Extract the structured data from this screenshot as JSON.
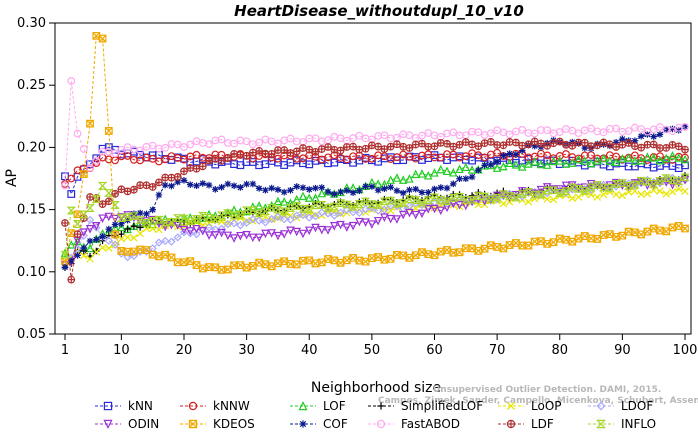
{
  "chart_data": {
    "type": "line",
    "title": "HeartDisease_withoutdupl_10_v10",
    "xlabel": "Neighborhood size",
    "ylabel": "AP",
    "xlim": [
      1,
      100
    ],
    "ylim": [
      0.05,
      0.3
    ],
    "xticks": [
      1,
      10,
      20,
      30,
      40,
      50,
      60,
      70,
      80,
      90,
      100
    ],
    "yticks": [
      "0.05",
      "0.10",
      "0.15",
      "0.20",
      "0.25",
      "0.30"
    ],
    "grid": false,
    "legend_position": "bottom",
    "watermark": [
      "Unsupervised Outlier Detection. DAMI, 2015.",
      "Campos, Zimek, Sander, Campello, Micenkova, Schubert, Assent, Houle"
    ],
    "series": [
      {
        "name": "kNN",
        "color": "#2b2bd6",
        "marker": "square",
        "x": [
          1,
          2,
          3,
          5,
          7,
          10,
          15,
          20,
          25,
          30,
          40,
          50,
          60,
          70,
          80,
          90,
          100
        ],
        "y": [
          0.175,
          0.163,
          0.178,
          0.185,
          0.2,
          0.196,
          0.193,
          0.19,
          0.188,
          0.187,
          0.188,
          0.19,
          0.192,
          0.19,
          0.188,
          0.186,
          0.185
        ]
      },
      {
        "name": "kNNW",
        "color": "#d61f1f",
        "marker": "circle",
        "x": [
          1,
          2,
          3,
          5,
          7,
          10,
          15,
          20,
          25,
          30,
          40,
          50,
          60,
          70,
          80,
          90,
          100
        ],
        "y": [
          0.172,
          0.176,
          0.18,
          0.185,
          0.19,
          0.192,
          0.19,
          0.192,
          0.193,
          0.193,
          0.192,
          0.192,
          0.193,
          0.194,
          0.193,
          0.192,
          0.191
        ]
      },
      {
        "name": "LOF",
        "color": "#22cc22",
        "marker": "triangle-up",
        "x": [
          1,
          2,
          3,
          5,
          7,
          10,
          15,
          20,
          25,
          30,
          40,
          50,
          60,
          70,
          80,
          90,
          100
        ],
        "y": [
          0.115,
          0.12,
          0.125,
          0.118,
          0.132,
          0.135,
          0.14,
          0.142,
          0.145,
          0.15,
          0.16,
          0.17,
          0.18,
          0.185,
          0.188,
          0.19,
          0.192
        ]
      },
      {
        "name": "SimplifiedLOF",
        "color": "#000000",
        "marker": "plus",
        "x": [
          1,
          2,
          3,
          5,
          7,
          10,
          15,
          20,
          25,
          30,
          40,
          50,
          60,
          70,
          80,
          90,
          100
        ],
        "y": [
          0.102,
          0.108,
          0.118,
          0.112,
          0.125,
          0.132,
          0.14,
          0.14,
          0.143,
          0.147,
          0.153,
          0.156,
          0.16,
          0.163,
          0.166,
          0.17,
          0.176
        ]
      },
      {
        "name": "LoOP",
        "color": "#e6e600",
        "marker": "x",
        "x": [
          1,
          2,
          3,
          5,
          7,
          10,
          15,
          20,
          25,
          30,
          40,
          50,
          60,
          70,
          80,
          90,
          100
        ],
        "y": [
          0.11,
          0.112,
          0.115,
          0.112,
          0.118,
          0.125,
          0.135,
          0.138,
          0.14,
          0.142,
          0.146,
          0.15,
          0.153,
          0.156,
          0.16,
          0.163,
          0.165
        ]
      },
      {
        "name": "LDOF",
        "color": "#a8a8ff",
        "marker": "diamond",
        "x": [
          1,
          2,
          3,
          5,
          7,
          10,
          12,
          15,
          20,
          25,
          30,
          40,
          50,
          60,
          70,
          80,
          90,
          100
        ],
        "y": [
          0.105,
          0.11,
          0.12,
          0.14,
          0.13,
          0.115,
          0.112,
          0.12,
          0.13,
          0.135,
          0.14,
          0.145,
          0.15,
          0.155,
          0.16,
          0.165,
          0.17,
          0.175
        ]
      },
      {
        "name": "ODIN",
        "color": "#9b30d6",
        "marker": "triangle-down",
        "x": [
          1,
          2,
          3,
          5,
          7,
          10,
          15,
          20,
          25,
          30,
          40,
          50,
          60,
          70,
          80,
          90,
          100
        ],
        "y": [
          0.105,
          0.11,
          0.125,
          0.135,
          0.142,
          0.145,
          0.14,
          0.135,
          0.13,
          0.128,
          0.133,
          0.14,
          0.15,
          0.16,
          0.168,
          0.17,
          0.172
        ]
      },
      {
        "name": "KDEOS",
        "color": "#f0a800",
        "marker": "square-x",
        "x": [
          1,
          2,
          3,
          4,
          5,
          6,
          7,
          8,
          9,
          10,
          12,
          15,
          20,
          25,
          30,
          40,
          50,
          60,
          70,
          80,
          90,
          100
        ],
        "y": [
          0.11,
          0.13,
          0.145,
          0.18,
          0.22,
          0.288,
          0.287,
          0.215,
          0.13,
          0.115,
          0.118,
          0.115,
          0.108,
          0.102,
          0.105,
          0.108,
          0.11,
          0.115,
          0.12,
          0.125,
          0.13,
          0.136
        ]
      },
      {
        "name": "COF",
        "color": "#0b1a8c",
        "marker": "asterisk",
        "x": [
          1,
          3,
          5,
          7,
          10,
          12,
          15,
          17,
          20,
          25,
          30,
          35,
          40,
          45,
          50,
          55,
          60,
          65,
          70,
          75,
          80,
          85,
          90,
          95,
          100
        ],
        "y": [
          0.102,
          0.115,
          0.123,
          0.13,
          0.14,
          0.145,
          0.15,
          0.17,
          0.172,
          0.168,
          0.17,
          0.165,
          0.168,
          0.163,
          0.168,
          0.165,
          0.165,
          0.175,
          0.19,
          0.2,
          0.205,
          0.2,
          0.205,
          0.21,
          0.217
        ]
      },
      {
        "name": "FastABOD",
        "color": "#ffaaee",
        "marker": "circle",
        "x": [
          1,
          2,
          3,
          5,
          7,
          10,
          15,
          20,
          25,
          30,
          40,
          50,
          60,
          70,
          80,
          90,
          100
        ],
        "y": [
          0.17,
          0.255,
          0.21,
          0.185,
          0.195,
          0.198,
          0.2,
          0.202,
          0.205,
          0.204,
          0.206,
          0.208,
          0.21,
          0.212,
          0.213,
          0.214,
          0.215
        ]
      },
      {
        "name": "LDF",
        "color": "#b03030",
        "marker": "circle-plus",
        "x": [
          1,
          2,
          3,
          5,
          7,
          10,
          15,
          20,
          25,
          30,
          40,
          50,
          60,
          70,
          80,
          90,
          100
        ],
        "y": [
          0.14,
          0.092,
          0.13,
          0.16,
          0.155,
          0.165,
          0.17,
          0.18,
          0.19,
          0.195,
          0.198,
          0.2,
          0.202,
          0.203,
          0.203,
          0.202,
          0.2
        ]
      },
      {
        "name": "INFLO",
        "color": "#a6d626",
        "marker": "hourglass",
        "x": [
          1,
          2,
          3,
          5,
          7,
          10,
          15,
          20,
          25,
          30,
          40,
          50,
          60,
          70,
          80,
          90,
          100
        ],
        "y": [
          0.112,
          0.15,
          0.14,
          0.15,
          0.17,
          0.145,
          0.14,
          0.142,
          0.144,
          0.148,
          0.152,
          0.155,
          0.158,
          0.16,
          0.165,
          0.17,
          0.175
        ]
      }
    ]
  }
}
